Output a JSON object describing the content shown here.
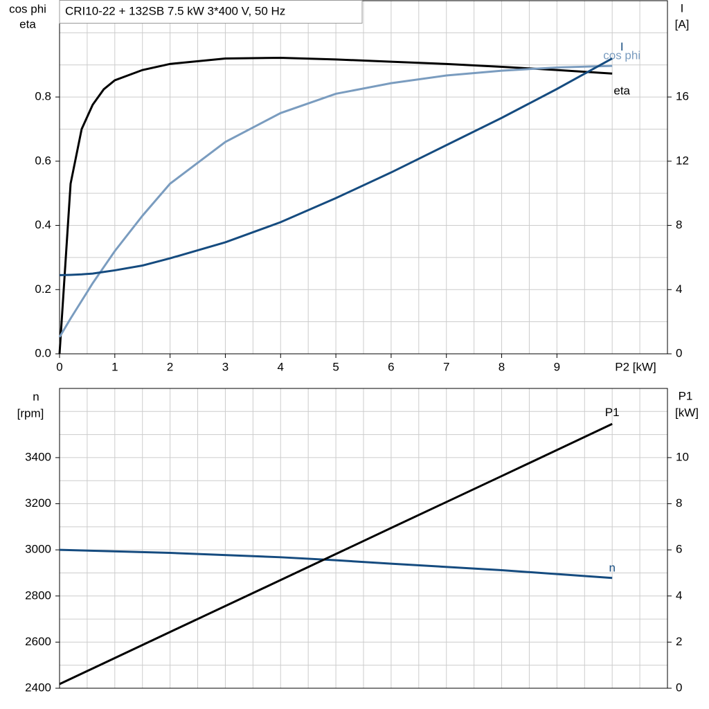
{
  "chart_data": [
    {
      "type": "line",
      "title": "CRI10-22 + 132SB   7.5 kW   3*400 V, 50 Hz",
      "ylabel": [
        "cos phi",
        "eta"
      ],
      "y2label": [
        "I",
        "[A]"
      ],
      "xlabel": "P2 [kW]",
      "x": [
        0,
        0.2,
        0.4,
        0.6,
        0.8,
        1,
        1.5,
        2,
        3,
        4,
        5,
        6,
        7,
        8,
        9,
        10
      ],
      "series": [
        {
          "name": "eta",
          "color": "#000000",
          "values": [
            0,
            0.53,
            0.7,
            0.776,
            0.824,
            0.852,
            0.884,
            0.903,
            0.92,
            0.922,
            0.917,
            0.91,
            0.903,
            0.894,
            0.884,
            0.873
          ]
        },
        {
          "name": "cos phi",
          "color": "#7a9cbf",
          "values": [
            0.052,
            0.11,
            0.165,
            0.22,
            0.27,
            0.32,
            0.43,
            0.53,
            0.66,
            0.75,
            0.81,
            0.843,
            0.867,
            0.882,
            0.892,
            0.897
          ]
        },
        {
          "name": "I",
          "color": "#154b7f",
          "axis": "y2",
          "values": [
            4.9,
            4.92,
            4.95,
            5.0,
            5.1,
            5.2,
            5.5,
            5.95,
            6.95,
            8.2,
            9.7,
            11.3,
            13.0,
            14.7,
            16.5,
            18.4
          ]
        }
      ],
      "xlim": [
        0,
        11
      ],
      "xticks": [
        0,
        1,
        2,
        3,
        4,
        5,
        6,
        7,
        8,
        9
      ],
      "ylim": [
        0,
        1.1
      ],
      "yticks": [
        {
          "value": 0,
          "label": "0.0"
        },
        0.2,
        0.4,
        0.6,
        0.8
      ],
      "y2lim": [
        0,
        22
      ],
      "y2ticks": [
        0,
        4,
        8,
        12,
        16
      ],
      "grid": true
    },
    {
      "type": "line",
      "ylabel": [
        "n",
        "[rpm]"
      ],
      "y2label": [
        "P1",
        "[kW]"
      ],
      "x": [
        0,
        2,
        4,
        5,
        6,
        8,
        10
      ],
      "series": [
        {
          "name": "n",
          "color": "#154b7f",
          "values": [
            3000,
            2987,
            2968,
            2955,
            2940,
            2912,
            2878
          ]
        },
        {
          "name": "P1",
          "color": "#000000",
          "axis": "y2",
          "values": [
            0.18,
            2.44,
            4.69,
            5.82,
            6.95,
            9.2,
            11.46
          ]
        }
      ],
      "xlim": [
        0,
        11
      ],
      "ylim": [
        2400,
        3700
      ],
      "yticks": [
        2400,
        2600,
        2800,
        3000,
        3200,
        3400
      ],
      "y2lim": [
        0,
        13
      ],
      "y2ticks": [
        0,
        2,
        4,
        6,
        8,
        10
      ],
      "grid": true
    }
  ]
}
